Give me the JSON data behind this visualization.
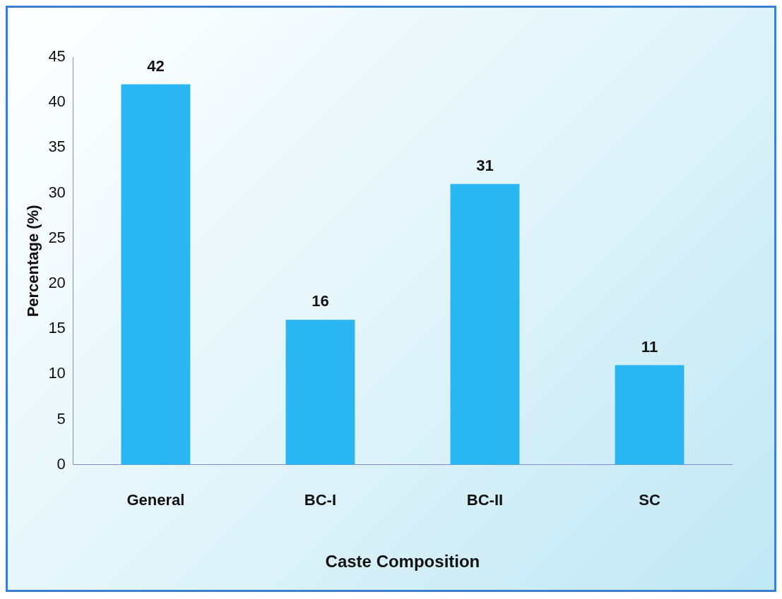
{
  "chart_data": {
    "type": "bar",
    "xlabel": "Caste Composition",
    "ylabel": "Percentage (%)",
    "categories": [
      "General",
      "BC-I",
      "BC-II",
      "SC"
    ],
    "values": [
      42,
      16,
      31,
      11
    ],
    "color": "#29b6f2",
    "ylim": [
      0,
      45
    ],
    "yticks": [
      0,
      5,
      10,
      15,
      20,
      25,
      30,
      35,
      40,
      45
    ],
    "data_labels": true,
    "grid": false,
    "legend": false
  }
}
